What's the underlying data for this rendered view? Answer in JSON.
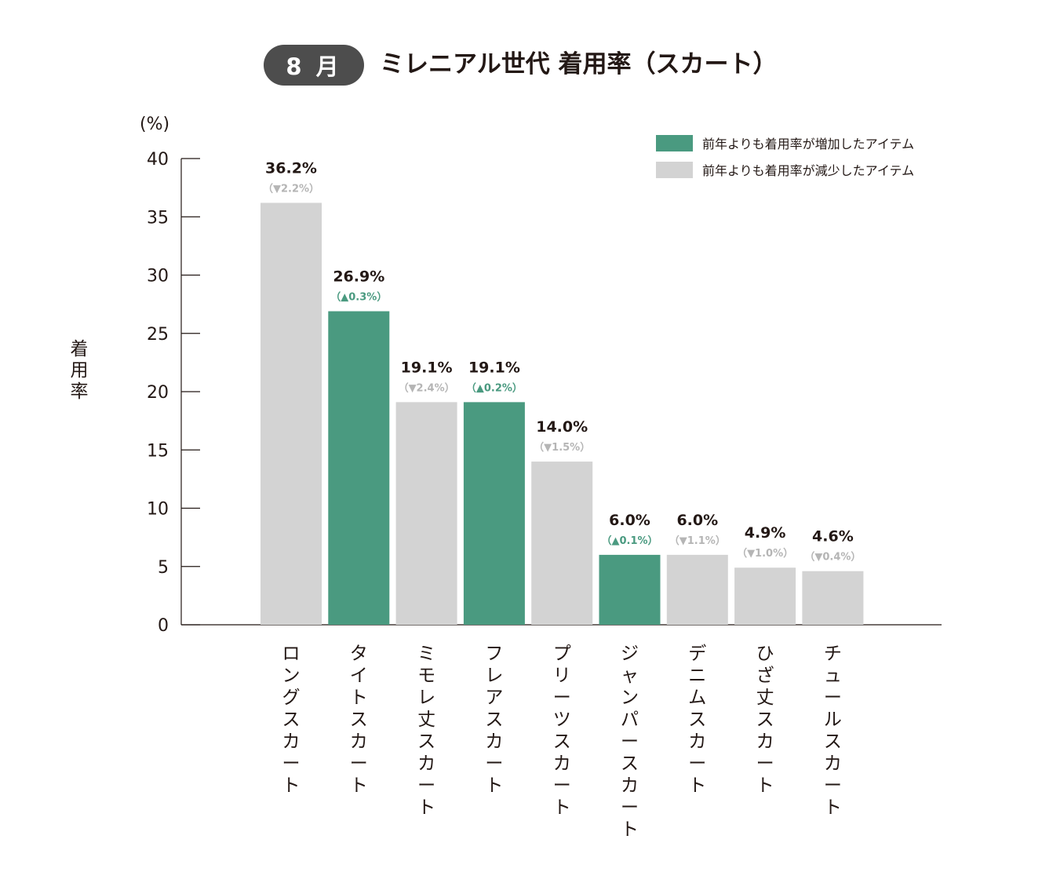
{
  "header": {
    "month_badge": "8 月",
    "title": "ミレニアル世代 着用率（スカート）"
  },
  "colors": {
    "increase": "#4a9a80",
    "decrease": "#d3d3d3",
    "badge_bg": "#4d4d4d",
    "text": "#231815",
    "decrease_text": "#b5b5b5"
  },
  "legend": {
    "increase_label": "前年よりも着用率が増加したアイテム",
    "decrease_label": "前年よりも着用率が減少したアイテム"
  },
  "chart_data": {
    "type": "bar",
    "title": "ミレニアル世代 着用率（スカート）",
    "ylabel": "着用率",
    "yunit": "(%)",
    "ylim": [
      0,
      40
    ],
    "yticks": [
      0,
      5,
      10,
      15,
      20,
      25,
      30,
      35,
      40
    ],
    "categories": [
      "ロングスカート",
      "タイトスカート",
      "ミモレ丈スカート",
      "フレアスカート",
      "プリーツスカート",
      "ジャンパースカート",
      "デニムスカート",
      "ひざ丈スカート",
      "チュールスカート"
    ],
    "values": [
      36.2,
      26.9,
      19.1,
      19.1,
      14.0,
      6.0,
      6.0,
      4.9,
      4.6
    ],
    "value_labels": [
      "36.2%",
      "26.9%",
      "19.1%",
      "19.1%",
      "14.0%",
      "6.0%",
      "6.0%",
      "4.9%",
      "4.6%"
    ],
    "trend": [
      "down",
      "up",
      "down",
      "up",
      "down",
      "up",
      "down",
      "down",
      "down"
    ],
    "change_labels": [
      "（▼2.2%）",
      "（▲0.3%）",
      "（▼2.4%）",
      "（▲0.2%）",
      "（▼1.5%）",
      "（▲0.1%）",
      "（▼1.1%）",
      "（▼1.0%）",
      "（▼0.4%）"
    ],
    "legend_position": "top-right",
    "grid": false
  }
}
